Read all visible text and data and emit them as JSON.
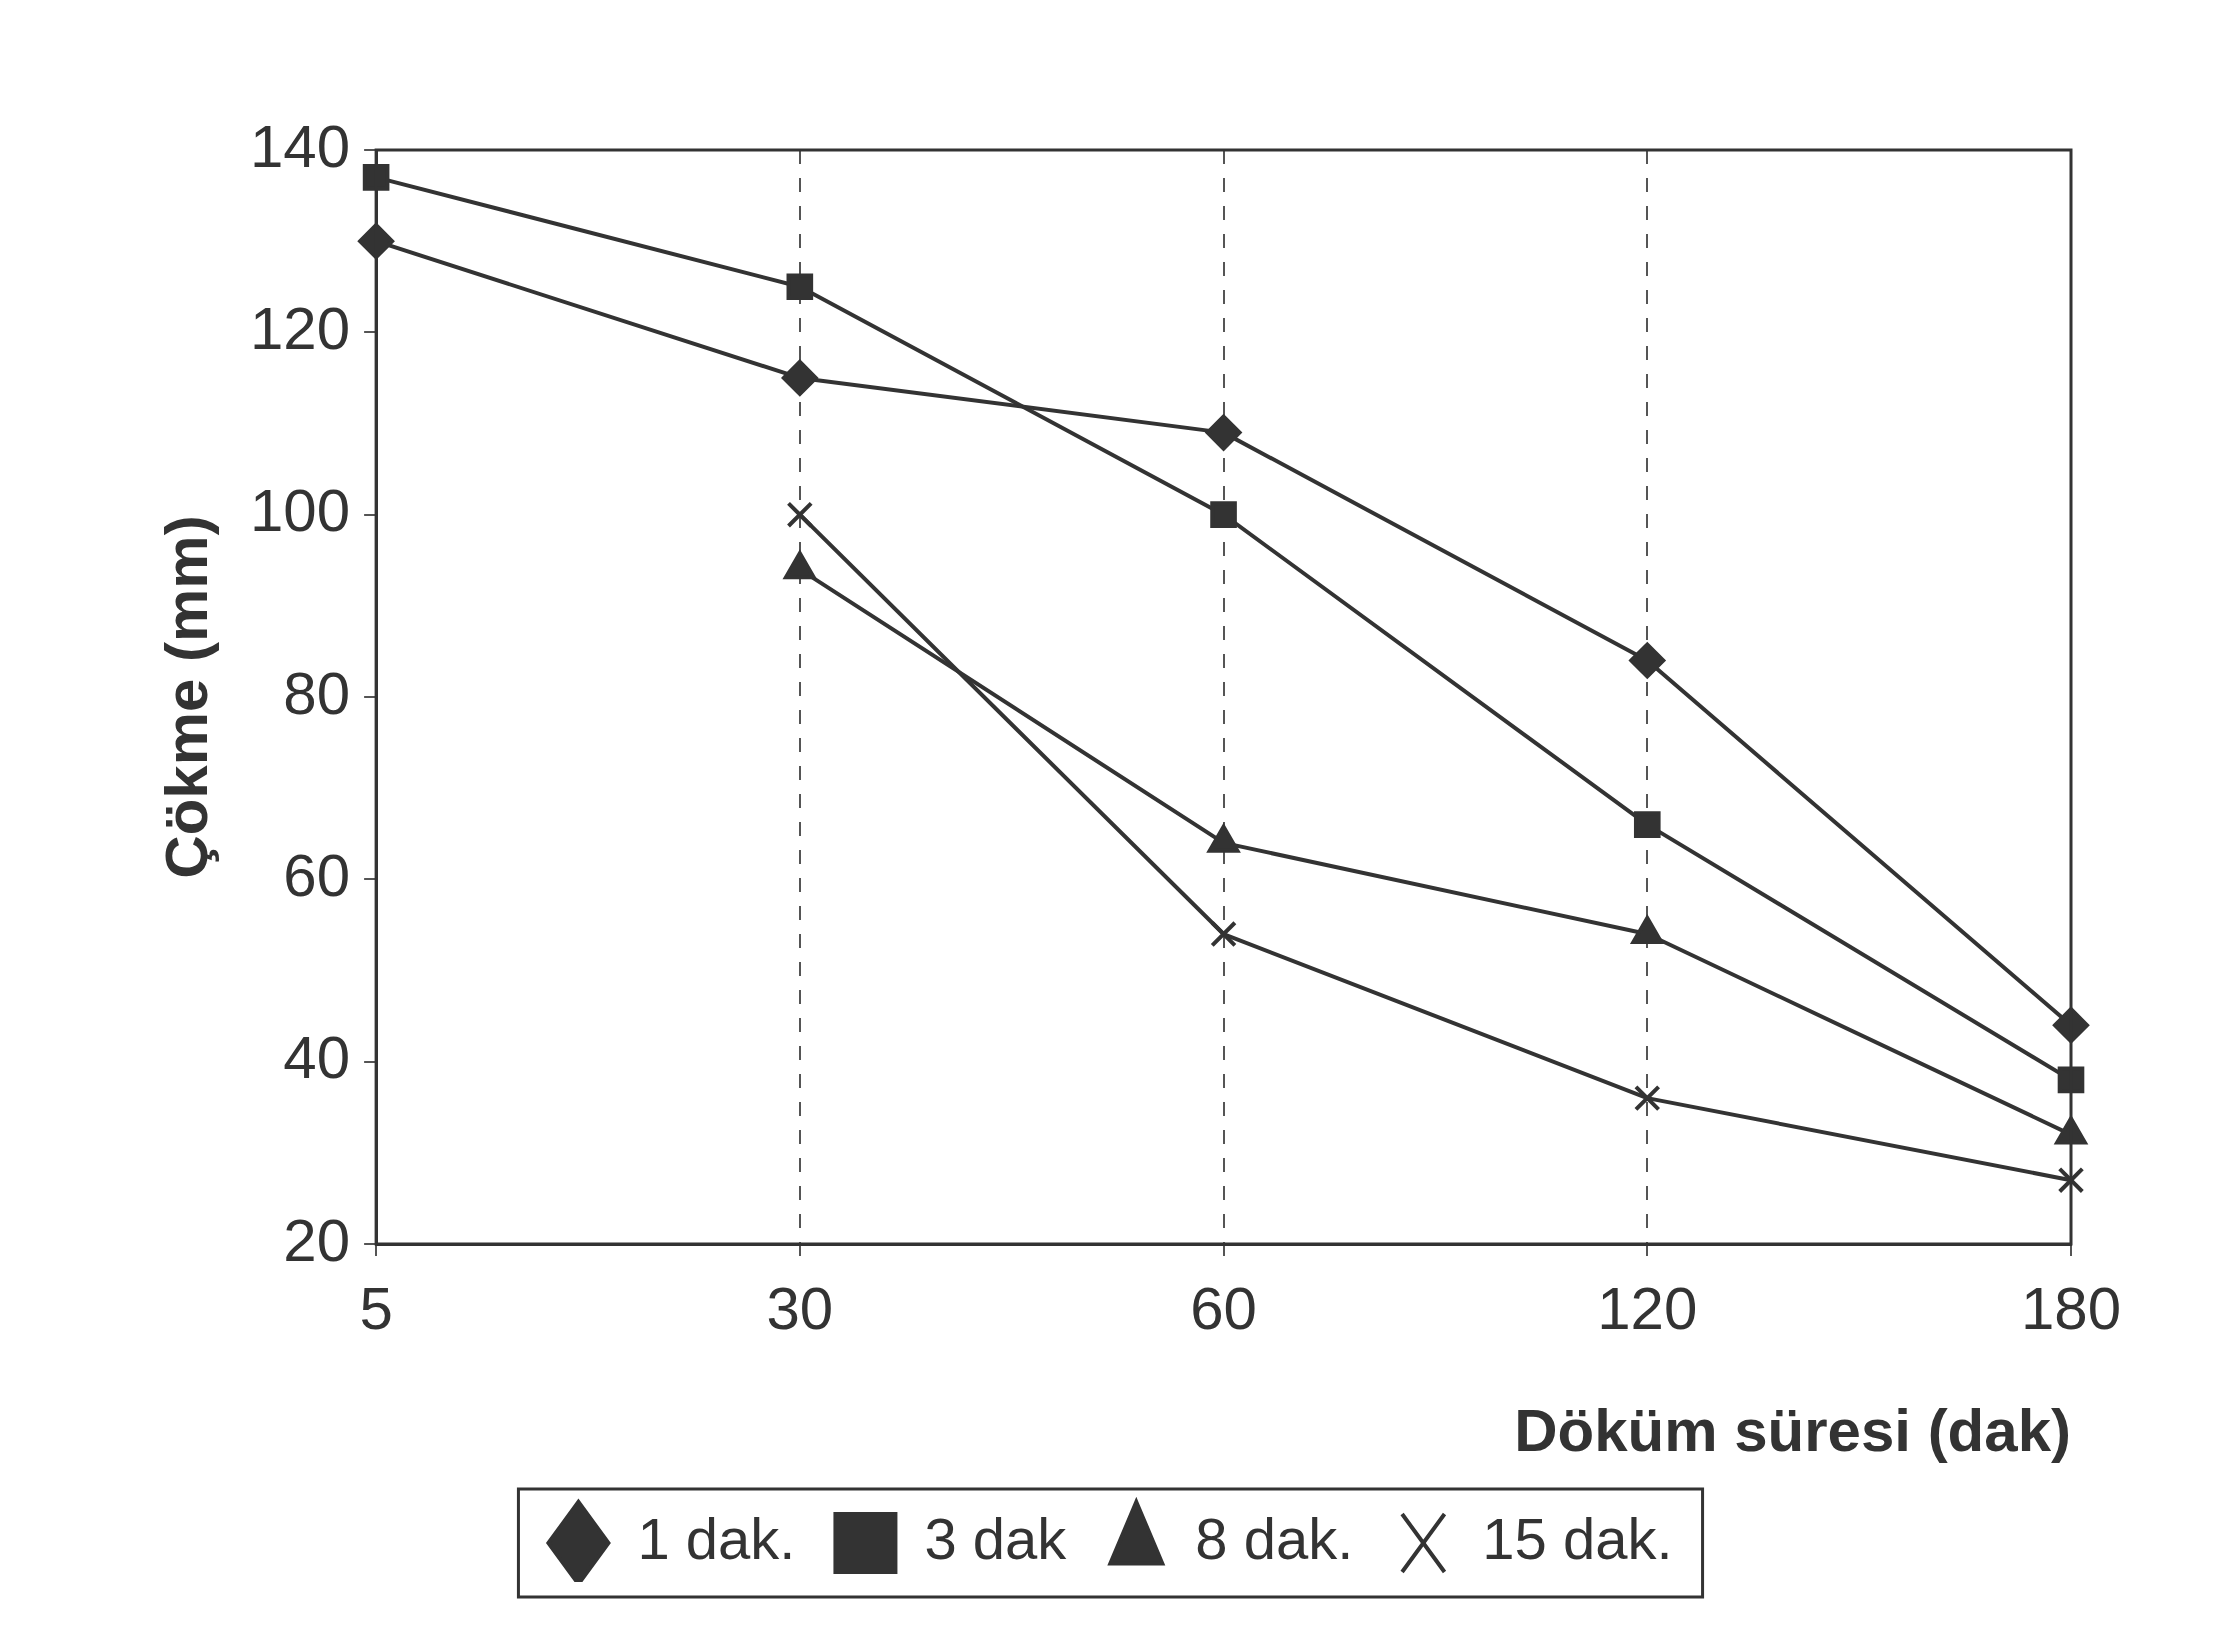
{
  "chart_data": {
    "type": "line",
    "xlabel": "Döküm süresi (dak)",
    "ylabel": "Çökme (mm)",
    "categories": [
      "5",
      "30",
      "60",
      "120",
      "180"
    ],
    "ylim": [
      20,
      140
    ],
    "yticks": [
      20,
      40,
      60,
      80,
      100,
      120,
      140
    ],
    "grid": "x",
    "legend": "bottom",
    "line_style": "solid",
    "series": [
      {
        "name": "1 dak.",
        "color": "#333333",
        "marker": "diamond",
        "values": [
          130,
          115,
          109,
          84,
          44
        ]
      },
      {
        "name": "3 dak",
        "color": "#333333",
        "marker": "square",
        "values": [
          137,
          125,
          100,
          66,
          38
        ]
      },
      {
        "name": "8 dak.",
        "color": "#333333",
        "marker": "triangle",
        "values": [
          null,
          94,
          64,
          54,
          32
        ]
      },
      {
        "name": "15 dak.",
        "color": "#333333",
        "marker": "cross",
        "values": [
          null,
          100,
          54,
          36,
          27
        ]
      }
    ]
  }
}
